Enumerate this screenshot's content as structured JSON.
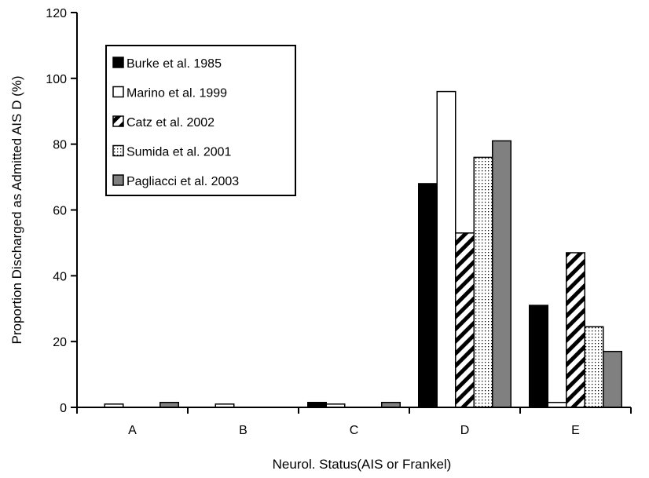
{
  "chart_data": {
    "type": "bar",
    "title": "",
    "xlabel": "Neurol. Status(AIS or Frankel)",
    "ylabel": "Proportion Discharged as Admitted AIS D (%)",
    "ylim": [
      0,
      120
    ],
    "yticks": [
      0,
      20,
      40,
      60,
      80,
      100,
      120
    ],
    "grid": false,
    "legend_position": "top-left",
    "categories": [
      "A",
      "B",
      "C",
      "D",
      "E"
    ],
    "series": [
      {
        "name": "Burke et al. 1985",
        "fill": "solid",
        "color": "#000000",
        "values": [
          0,
          0,
          1.5,
          68,
          31
        ]
      },
      {
        "name": "Marino et al. 1999",
        "fill": "hollow",
        "color": "#ffffff",
        "values": [
          1,
          1,
          1,
          96,
          1.5
        ]
      },
      {
        "name": "Catz et al. 2002",
        "fill": "diagonal-stripes",
        "color": "#000000",
        "values": [
          0,
          0,
          0,
          53,
          47
        ]
      },
      {
        "name": "Sumida et al. 2001",
        "fill": "dotted",
        "color": "#000000",
        "values": [
          0,
          0,
          0,
          76,
          24.5
        ]
      },
      {
        "name": "Pagliacci et al. 2003",
        "fill": "solid",
        "color": "#808080",
        "values": [
          1.5,
          0,
          1.5,
          81,
          17
        ]
      }
    ]
  }
}
